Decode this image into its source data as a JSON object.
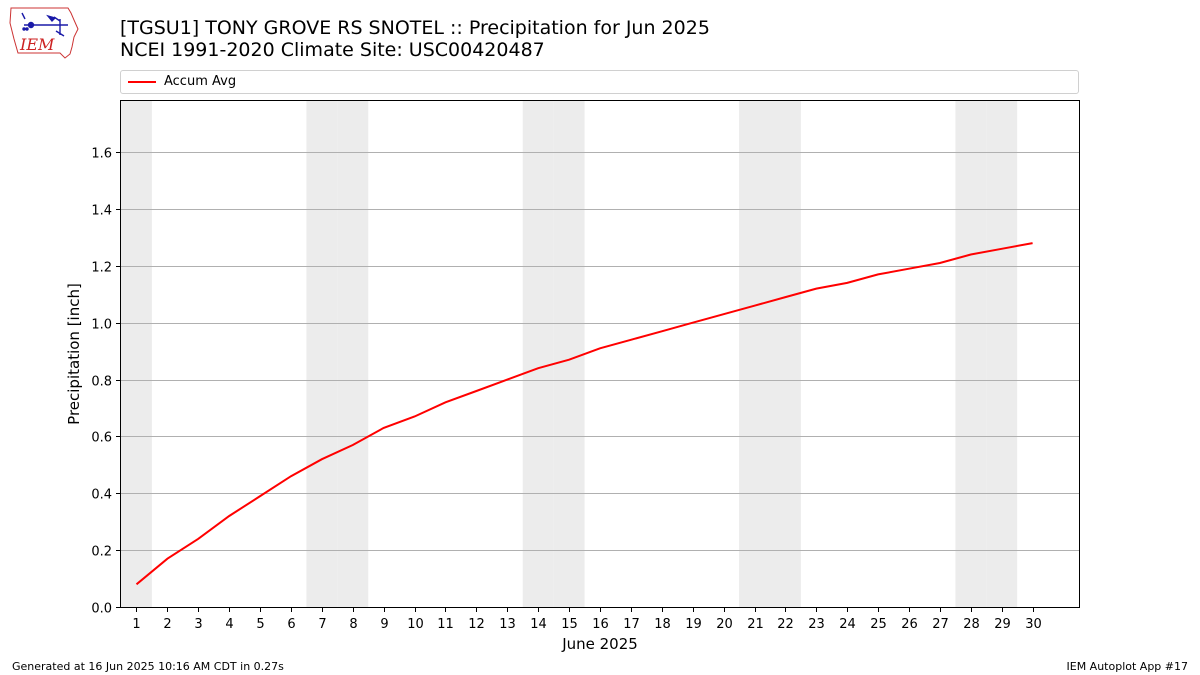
{
  "logo": {
    "text": "IEM"
  },
  "title": {
    "line1": "[TGSU1] TONY GROVE RS SNOTEL :: Precipitation for Jun 2025",
    "line2": "NCEI 1991-2020 Climate Site: USC00420487"
  },
  "colors": {
    "series": "#ff0000",
    "weekend_band": "#ececec",
    "grid": "#b0b0b0"
  },
  "chart_data": {
    "type": "line",
    "xlabel": "June 2025",
    "ylabel": "Precipitation [inch]",
    "xlim": [
      0.5,
      31.5
    ],
    "ylim": [
      0.0,
      1.78
    ],
    "grid": "horizontal",
    "legend_position": "top",
    "x": [
      1,
      2,
      3,
      4,
      5,
      6,
      7,
      8,
      9,
      10,
      11,
      12,
      13,
      14,
      15,
      16,
      17,
      18,
      19,
      20,
      21,
      22,
      23,
      24,
      25,
      26,
      27,
      28,
      29,
      30
    ],
    "x_tick_labels": [
      "1",
      "2",
      "3",
      "4",
      "5",
      "6",
      "7",
      "8",
      "9",
      "10",
      "11",
      "12",
      "13",
      "14",
      "15",
      "16",
      "17",
      "18",
      "19",
      "20",
      "21",
      "22",
      "23",
      "24",
      "25",
      "26",
      "27",
      "28",
      "29",
      "30"
    ],
    "y_ticks": [
      0.0,
      0.2,
      0.4,
      0.6,
      0.8,
      1.0,
      1.2,
      1.4,
      1.6
    ],
    "y_tick_labels": [
      "0.0",
      "0.2",
      "0.4",
      "0.6",
      "0.8",
      "1.0",
      "1.2",
      "1.4",
      "1.6"
    ],
    "weekend_days": [
      1,
      7,
      8,
      14,
      15,
      21,
      22,
      28,
      29
    ],
    "series": [
      {
        "name": "Accum Avg",
        "color": "#ff0000",
        "values": [
          0.08,
          0.17,
          0.24,
          0.32,
          0.39,
          0.46,
          0.52,
          0.57,
          0.63,
          0.67,
          0.72,
          0.76,
          0.8,
          0.84,
          0.87,
          0.91,
          0.94,
          0.97,
          1.0,
          1.03,
          1.06,
          1.09,
          1.12,
          1.14,
          1.17,
          1.19,
          1.21,
          1.24,
          1.26,
          1.28
        ]
      }
    ]
  },
  "footer": {
    "left": "Generated at 16 Jun 2025 10:16 AM CDT in 0.27s",
    "right": "IEM Autoplot App #17"
  }
}
